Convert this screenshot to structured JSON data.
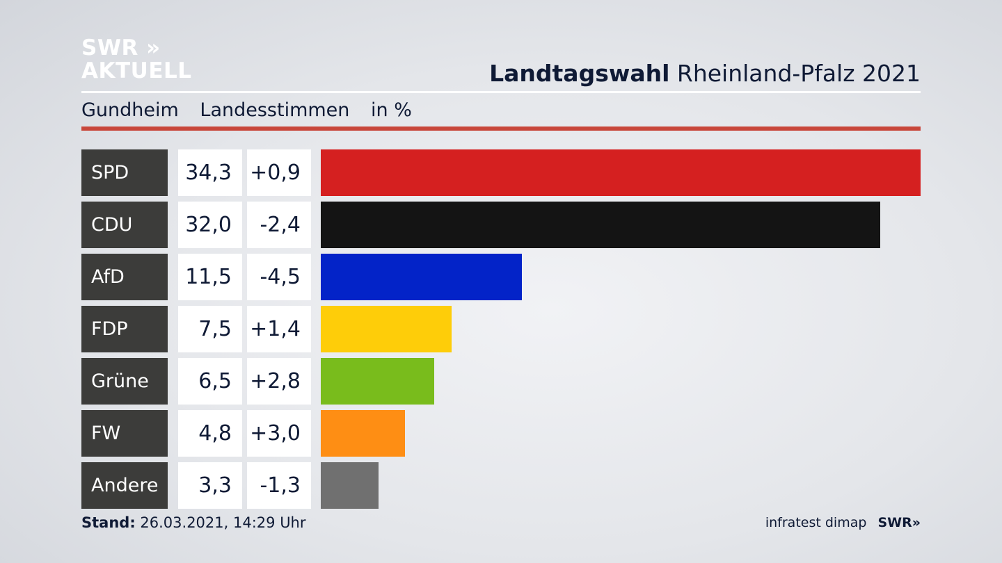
{
  "logo": {
    "line1": "SWR »",
    "line2": "AKTUELL"
  },
  "header": {
    "title_bold": "Landtagswahl",
    "title_rest": "Rheinland-Pfalz 2021"
  },
  "subheader": {
    "place": "Gundheim",
    "measure": "Landesstimmen",
    "unit": "in %"
  },
  "footer": {
    "stand_label": "Stand:",
    "stand_value": "26.03.2021, 14:29 Uhr",
    "source": "infratest dimap",
    "brand": "SWR»"
  },
  "chart_data": {
    "type": "bar",
    "orientation": "horizontal",
    "categories": [
      "SPD",
      "CDU",
      "AfD",
      "FDP",
      "Grüne",
      "FW",
      "Andere"
    ],
    "values": [
      34.3,
      32.0,
      11.5,
      7.5,
      6.5,
      4.8,
      3.3
    ],
    "value_labels": [
      "34,3",
      "32,0",
      "11,5",
      "7,5",
      "6,5",
      "4,8",
      "3,3"
    ],
    "changes": [
      0.9,
      -2.4,
      -4.5,
      1.4,
      2.8,
      3.0,
      -1.3
    ],
    "change_labels": [
      "+0,9",
      "-2,4",
      "-4,5",
      "+1,4",
      "+2,8",
      "+3,0",
      "-1,3"
    ],
    "colors": [
      "#d52020",
      "#141414",
      "#0323c8",
      "#fecd09",
      "#79bc1c",
      "#fe8e14",
      "#707070"
    ],
    "xlim": [
      0,
      34.3
    ]
  }
}
